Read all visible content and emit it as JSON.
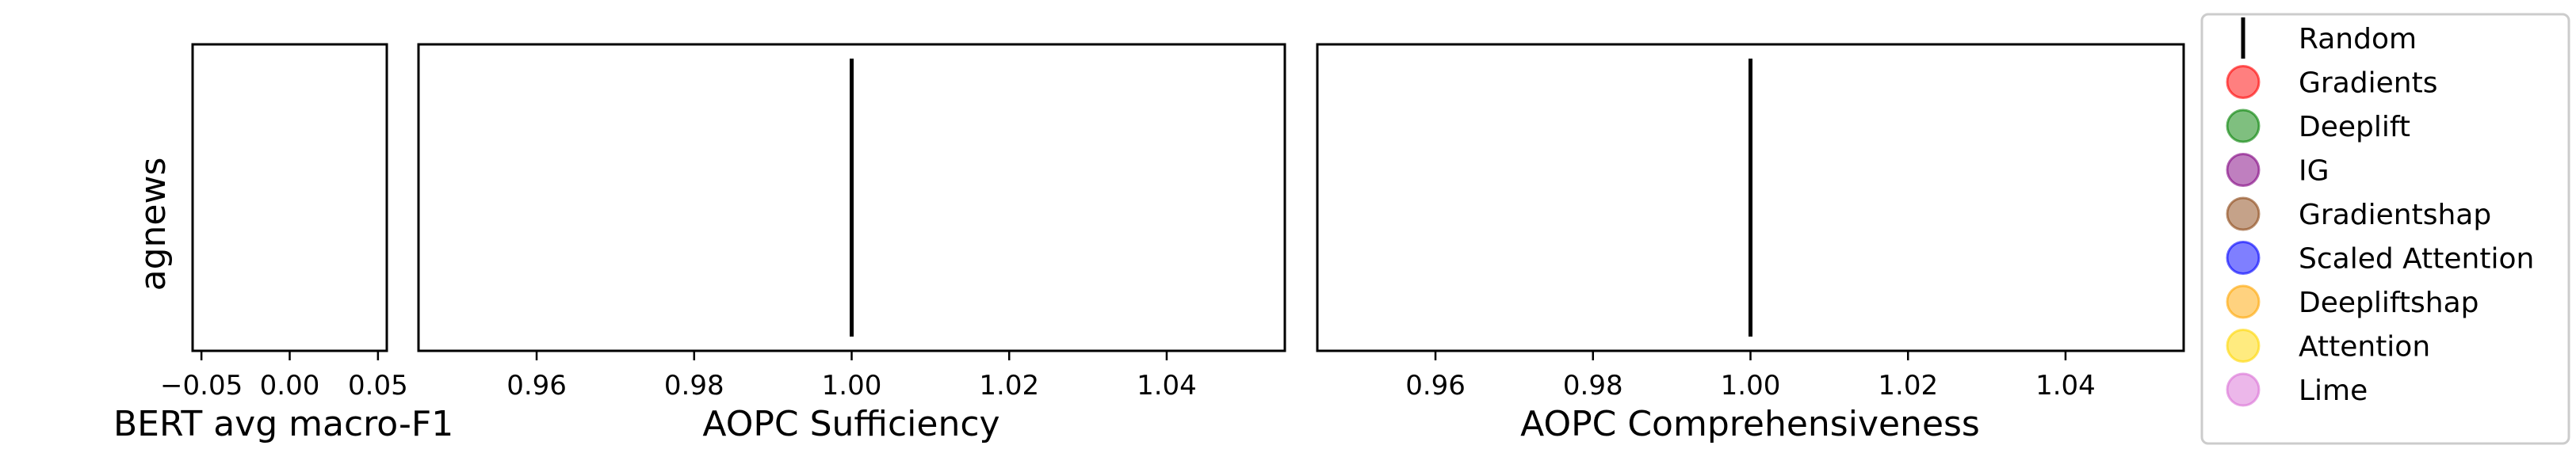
{
  "chart_data": [
    {
      "type": "bar",
      "row_label": "agnews",
      "xlabel": "BERT avg macro-F1",
      "xlim": [
        -0.055,
        0.055
      ],
      "xticks": [
        -0.05,
        0.0,
        0.05
      ],
      "xtick_labels": [
        "−0.05",
        "0.00",
        "0.05"
      ],
      "values": []
    },
    {
      "type": "scatter",
      "xlabel": "AOPC Sufficiency",
      "xlim": [
        0.945,
        1.055
      ],
      "xticks": [
        0.96,
        0.98,
        1.0,
        1.02,
        1.04
      ],
      "xtick_labels": [
        "0.96",
        "0.98",
        "1.00",
        "1.02",
        "1.04"
      ],
      "random_baseline": 1.0
    },
    {
      "type": "scatter",
      "xlabel": "AOPC Comprehensiveness",
      "xlim": [
        0.945,
        1.055
      ],
      "xticks": [
        0.96,
        0.98,
        1.0,
        1.02,
        1.04
      ],
      "xtick_labels": [
        "0.96",
        "0.98",
        "1.00",
        "1.02",
        "1.04"
      ],
      "random_baseline": 1.0
    }
  ],
  "legend": {
    "placement": "right",
    "entries": [
      {
        "label": "Random",
        "marker": "line",
        "color": "#000000"
      },
      {
        "label": "Gradients",
        "marker": "circle",
        "color": "#ff0000"
      },
      {
        "label": "Deeplift",
        "marker": "circle",
        "color": "#008000"
      },
      {
        "label": "IG",
        "marker": "circle",
        "color": "#800080"
      },
      {
        "label": "Gradientshap",
        "marker": "circle",
        "color": "#8b4513"
      },
      {
        "label": "Scaled Attention",
        "marker": "circle",
        "color": "#0000ff"
      },
      {
        "label": "Deepliftshap",
        "marker": "circle",
        "color": "#ffa500"
      },
      {
        "label": "Attention",
        "marker": "circle",
        "color": "#ffd700"
      },
      {
        "label": "Lime",
        "marker": "circle",
        "color": "#da70d6"
      }
    ]
  }
}
